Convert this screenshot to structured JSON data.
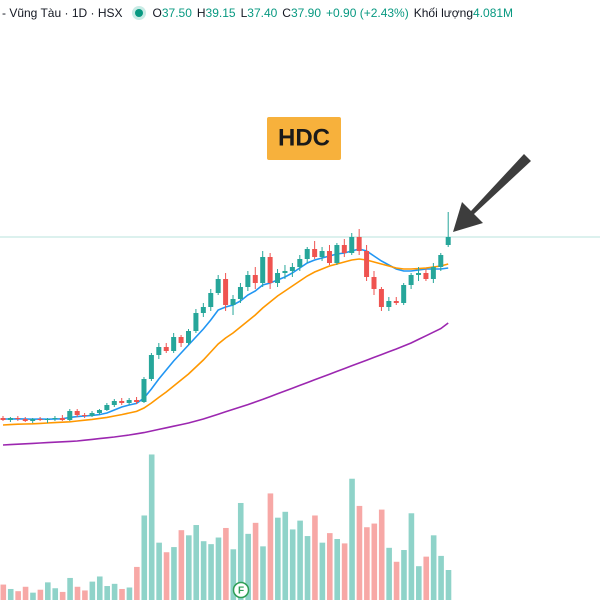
{
  "header": {
    "title": "- Vũng Tàu · 1D · HSX",
    "quotes": [
      {
        "label": "O",
        "value": "37.50"
      },
      {
        "label": "H",
        "value": "39.15"
      },
      {
        "label": "L",
        "value": "37.40"
      },
      {
        "label": "C",
        "value": "37.90"
      }
    ],
    "change": "+0.90 (+2.43%)",
    "volume_label": "Khối lượng",
    "volume": "4.081M"
  },
  "chart_data": {
    "type": "candlestick",
    "annotation": "HDC",
    "event_marker": "F",
    "ylim": [
      27.0,
      42.0
    ],
    "volume_ylim": [
      0,
      20
    ],
    "up_color": "#26a69a",
    "down_color": "#ef5350",
    "volume_up_color": "#8fd3c9",
    "volume_down_color": "#f7a8a6",
    "price_line_color": "#b9e3dd",
    "open": [
      28.85,
      28.75,
      28.85,
      28.8,
      28.7,
      28.8,
      28.75,
      28.8,
      28.85,
      28.75,
      29.2,
      29.0,
      28.95,
      29.1,
      29.25,
      29.5,
      29.7,
      29.6,
      29.75,
      29.65,
      30.8,
      32.0,
      32.4,
      32.2,
      32.9,
      32.6,
      33.2,
      34.1,
      34.4,
      35.1,
      35.8,
      34.5,
      34.8,
      35.4,
      36.0,
      35.6,
      36.9,
      35.6,
      36.1,
      36.2,
      36.4,
      36.8,
      37.3,
      36.9,
      37.2,
      36.6,
      37.5,
      37.1,
      37.9,
      37.2,
      35.9,
      35.3,
      34.4,
      34.7,
      34.6,
      35.5,
      36.0,
      36.1,
      35.8,
      36.4,
      37.5
    ],
    "high": [
      28.95,
      28.9,
      28.95,
      28.9,
      28.85,
      28.9,
      28.85,
      28.95,
      29.0,
      29.3,
      29.3,
      29.1,
      29.2,
      29.3,
      29.6,
      29.8,
      29.85,
      29.85,
      29.9,
      30.9,
      32.1,
      32.6,
      32.6,
      33.1,
      33.0,
      33.3,
      34.3,
      34.6,
      35.3,
      36.0,
      36.1,
      35.0,
      35.6,
      36.2,
      36.4,
      37.2,
      37.1,
      36.3,
      36.5,
      36.6,
      37.0,
      37.4,
      37.7,
      37.4,
      37.5,
      37.6,
      37.8,
      38.1,
      38.3,
      37.5,
      36.2,
      35.4,
      34.9,
      34.9,
      35.6,
      36.1,
      36.4,
      36.3,
      36.6,
      37.1,
      39.15
    ],
    "low": [
      28.7,
      28.65,
      28.7,
      28.65,
      28.6,
      28.7,
      28.6,
      28.7,
      28.7,
      28.7,
      28.9,
      28.85,
      28.9,
      29.0,
      29.2,
      29.4,
      29.5,
      29.5,
      29.55,
      29.6,
      30.7,
      31.8,
      32.1,
      32.1,
      32.4,
      32.5,
      33.1,
      33.9,
      34.2,
      35.0,
      34.2,
      34.0,
      34.6,
      35.2,
      35.3,
      35.4,
      35.3,
      35.4,
      35.8,
      35.9,
      36.2,
      36.6,
      36.8,
      36.7,
      36.5,
      36.5,
      36.9,
      37.0,
      37.0,
      35.7,
      35.0,
      34.2,
      34.2,
      34.5,
      34.5,
      35.3,
      35.7,
      35.7,
      35.6,
      36.2,
      37.4
    ],
    "close": [
      28.75,
      28.85,
      28.8,
      28.7,
      28.8,
      28.75,
      28.8,
      28.85,
      28.75,
      29.2,
      29.0,
      28.95,
      29.1,
      29.25,
      29.5,
      29.7,
      29.6,
      29.75,
      29.65,
      30.8,
      32.0,
      32.4,
      32.2,
      32.9,
      32.6,
      33.2,
      34.1,
      34.4,
      35.1,
      35.8,
      34.5,
      34.8,
      35.4,
      36.0,
      35.6,
      36.9,
      35.6,
      36.1,
      36.2,
      36.4,
      36.8,
      37.3,
      36.9,
      37.2,
      36.6,
      37.5,
      37.1,
      37.9,
      37.2,
      35.9,
      35.3,
      34.4,
      34.7,
      34.6,
      35.5,
      36.0,
      36.1,
      35.8,
      36.4,
      37.0,
      37.9
    ],
    "volume": [
      2.1,
      1.5,
      1.2,
      1.8,
      1.0,
      1.4,
      2.4,
      1.6,
      1.1,
      3.0,
      1.8,
      1.3,
      2.5,
      3.2,
      1.9,
      2.2,
      1.5,
      1.7,
      4.5,
      11.5,
      19.8,
      7.8,
      6.5,
      7.2,
      9.5,
      8.8,
      10.2,
      8.0,
      7.6,
      8.5,
      9.8,
      6.9,
      13.2,
      9.0,
      10.5,
      7.3,
      14.5,
      11.2,
      12.0,
      9.6,
      10.8,
      8.7,
      11.5,
      7.8,
      9.1,
      8.3,
      7.7,
      16.5,
      12.8,
      9.9,
      10.4,
      12.3,
      7.1,
      5.2,
      6.8,
      11.8,
      4.6,
      5.9,
      8.8,
      6.0,
      4.081
    ],
    "moving_averages": [
      {
        "color": "#2196f3",
        "values": [
          28.8,
          28.8,
          28.81,
          28.8,
          28.79,
          28.8,
          28.79,
          28.8,
          28.81,
          28.88,
          28.92,
          28.95,
          28.98,
          29.02,
          29.1,
          29.25,
          29.4,
          29.5,
          29.58,
          29.85,
          30.3,
          30.8,
          31.25,
          31.7,
          32.1,
          32.5,
          32.9,
          33.3,
          33.75,
          34.25,
          34.4,
          34.5,
          34.7,
          35.0,
          35.2,
          35.5,
          35.6,
          35.75,
          35.9,
          36.1,
          36.35,
          36.6,
          36.75,
          36.85,
          36.95,
          37.05,
          37.1,
          37.2,
          37.3,
          37.2,
          36.95,
          36.7,
          36.5,
          36.3,
          36.2,
          36.2,
          36.25,
          36.3,
          36.3,
          36.3,
          36.35
        ]
      },
      {
        "color": "#ff9800",
        "values": [
          28.5,
          28.52,
          28.54,
          28.55,
          28.56,
          28.58,
          28.6,
          28.62,
          28.64,
          28.66,
          28.7,
          28.74,
          28.78,
          28.83,
          28.88,
          28.95,
          29.02,
          29.1,
          29.18,
          29.35,
          29.6,
          29.88,
          30.15,
          30.45,
          30.75,
          31.05,
          31.4,
          31.75,
          32.15,
          32.55,
          32.85,
          33.1,
          33.4,
          33.7,
          34.0,
          34.35,
          34.65,
          34.95,
          35.2,
          35.45,
          35.7,
          35.95,
          36.15,
          36.3,
          36.45,
          36.55,
          36.65,
          36.75,
          36.8,
          36.75,
          36.65,
          36.55,
          36.45,
          36.35,
          36.3,
          36.3,
          36.32,
          36.35,
          36.4,
          36.45,
          36.55
        ]
      },
      {
        "color": "#9c27b0",
        "values": [
          27.5,
          27.52,
          27.54,
          27.56,
          27.58,
          27.6,
          27.62,
          27.64,
          27.66,
          27.68,
          27.7,
          27.74,
          27.78,
          27.82,
          27.86,
          27.9,
          27.95,
          28.0,
          28.06,
          28.12,
          28.2,
          28.28,
          28.36,
          28.44,
          28.52,
          28.6,
          28.7,
          28.8,
          28.92,
          29.04,
          29.16,
          29.28,
          29.4,
          29.52,
          29.65,
          29.78,
          29.92,
          30.06,
          30.2,
          30.34,
          30.48,
          30.62,
          30.76,
          30.9,
          31.04,
          31.18,
          31.32,
          31.46,
          31.6,
          31.74,
          31.88,
          32.02,
          32.16,
          32.3,
          32.45,
          32.6,
          32.78,
          32.96,
          33.14,
          33.32,
          33.6
        ]
      }
    ]
  }
}
